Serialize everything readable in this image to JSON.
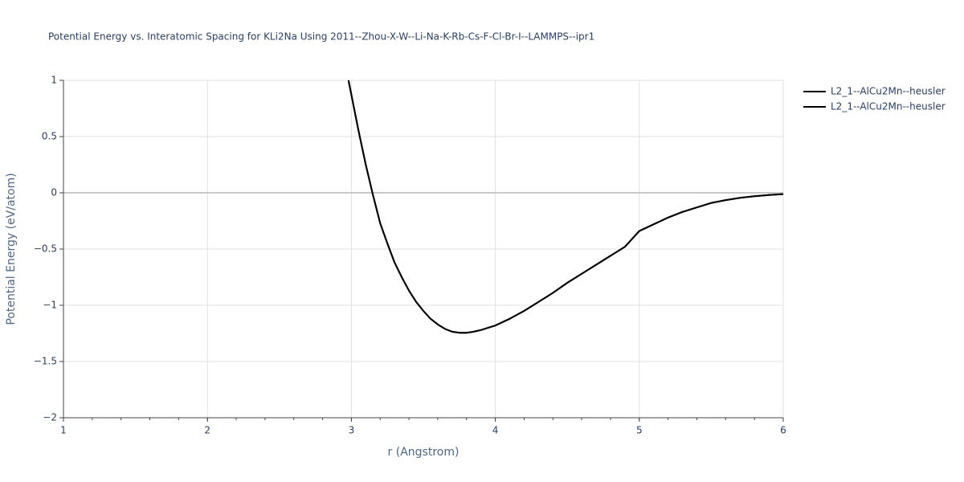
{
  "chart_data": {
    "type": "line",
    "title": "Potential Energy vs. Interatomic Spacing for KLi2Na Using 2011--Zhou-X-W--Li-Na-K-Rb-Cs-F-Cl-Br-I--LAMMPS--ipr1",
    "x_label": "r (Angstrom)",
    "y_label": "Potential Energy (eV/atom)",
    "xlim": [
      1,
      6
    ],
    "ylim": [
      -2,
      1
    ],
    "xticks": [
      1,
      2,
      3,
      4,
      5,
      6
    ],
    "yticks": [
      {
        "value": -2,
        "label": "−2"
      },
      {
        "value": -1.5,
        "label": "−1.5"
      },
      {
        "value": -1,
        "label": "−1"
      },
      {
        "value": -0.5,
        "label": "−0.5"
      },
      0,
      0.5,
      1
    ],
    "grid": true,
    "legend_position": "right",
    "x": [
      2.98,
      3.05,
      3.1,
      3.15,
      3.2,
      3.25,
      3.3,
      3.35,
      3.4,
      3.45,
      3.5,
      3.55,
      3.6,
      3.65,
      3.7,
      3.75,
      3.8,
      3.85,
      3.9,
      4.0,
      4.1,
      4.2,
      4.3,
      4.4,
      4.5,
      4.6,
      4.7,
      4.8,
      4.9,
      5.0,
      5.1,
      5.2,
      5.3,
      5.4,
      5.5,
      5.6,
      5.7,
      5.8,
      5.9,
      6.0
    ],
    "series": [
      {
        "name": "L2_1--AlCu2Mn--heusler",
        "color": "#000000",
        "values": [
          1.0,
          0.55,
          0.25,
          -0.02,
          -0.27,
          -0.45,
          -0.62,
          -0.75,
          -0.87,
          -0.97,
          -1.05,
          -1.12,
          -1.17,
          -1.21,
          -1.235,
          -1.245,
          -1.245,
          -1.235,
          -1.22,
          -1.18,
          -1.12,
          -1.05,
          -0.97,
          -0.89,
          -0.8,
          -0.72,
          -0.64,
          -0.56,
          -0.48,
          -0.34,
          -0.28,
          -0.22,
          -0.17,
          -0.13,
          -0.09,
          -0.065,
          -0.045,
          -0.03,
          -0.02,
          -0.012
        ]
      },
      {
        "name": "L2_1--AlCu2Mn--heusler",
        "color": "#000000",
        "values": [
          1.0,
          0.55,
          0.25,
          -0.02,
          -0.27,
          -0.45,
          -0.62,
          -0.75,
          -0.87,
          -0.97,
          -1.05,
          -1.12,
          -1.17,
          -1.21,
          -1.235,
          -1.245,
          -1.245,
          -1.235,
          -1.22,
          -1.18,
          -1.12,
          -1.05,
          -0.97,
          -0.89,
          -0.8,
          -0.72,
          -0.64,
          -0.56,
          -0.48,
          -0.34,
          -0.28,
          -0.22,
          -0.17,
          -0.13,
          -0.09,
          -0.065,
          -0.045,
          -0.03,
          -0.02,
          -0.012
        ]
      }
    ]
  }
}
